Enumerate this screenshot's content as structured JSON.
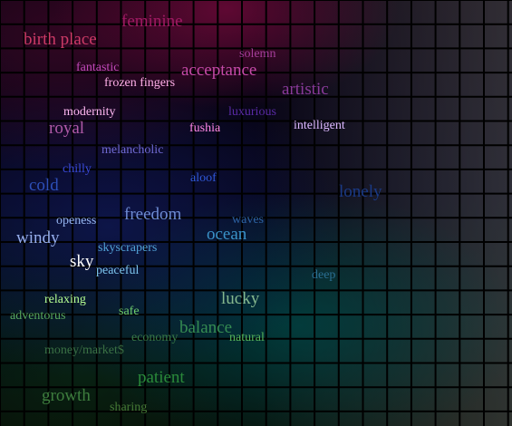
{
  "words": [
    {
      "text": "feminine",
      "color": "#a01a63"
    },
    {
      "text": "birth place",
      "color": "#cc3a66"
    },
    {
      "text": "solemn",
      "color": "#a43e9a"
    },
    {
      "text": "fantastic",
      "color": "#c048b8"
    },
    {
      "text": "acceptance",
      "color": "#c54aa8"
    },
    {
      "text": "frozen fingers",
      "color": "#ffb0e8"
    },
    {
      "text": "artistic",
      "color": "#8a3a9a"
    },
    {
      "text": "modernity",
      "color": "#ffb8f2"
    },
    {
      "text": "luxurious",
      "color": "#5a2aa6"
    },
    {
      "text": "royal",
      "color": "#b05aa8"
    },
    {
      "text": "fushia",
      "color": "#ff88e6"
    },
    {
      "text": "intelligent",
      "color": "#ddb8ff"
    },
    {
      "text": "melancholic",
      "color": "#6f6ad2"
    },
    {
      "text": "chilly",
      "color": "#3a4ad8"
    },
    {
      "text": "aloof",
      "color": "#2f58d8"
    },
    {
      "text": "cold",
      "color": "#2d4fb8"
    },
    {
      "text": "lonely",
      "color": "#1a3a86"
    },
    {
      "text": "freedom",
      "color": "#6e8cd4"
    },
    {
      "text": "openess",
      "color": "#96b6f0"
    },
    {
      "text": "waves",
      "color": "#2c62a2"
    },
    {
      "text": "windy",
      "color": "#96aeec"
    },
    {
      "text": "ocean",
      "color": "#3a92c8"
    },
    {
      "text": "skyscrapers",
      "color": "#52a2d6"
    },
    {
      "text": "sky",
      "color": "#ffffff"
    },
    {
      "text": "peaceful",
      "color": "#7cc4ec"
    },
    {
      "text": "deep",
      "color": "#2a6e92"
    },
    {
      "text": "lucky",
      "color": "#86b88e"
    },
    {
      "text": "relaxing",
      "color": "#b6ff92"
    },
    {
      "text": "safe",
      "color": "#6ecc6e"
    },
    {
      "text": "adventorus",
      "color": "#58a85e"
    },
    {
      "text": "balance",
      "color": "#358c52"
    },
    {
      "text": "economy",
      "color": "#3a7a46"
    },
    {
      "text": "natural",
      "color": "#56b45a"
    },
    {
      "text": "money/market$",
      "color": "#3a7044"
    },
    {
      "text": "patient",
      "color": "#2a8a3a"
    },
    {
      "text": "growth",
      "color": "#3e7e3e"
    },
    {
      "text": "sharing",
      "color": "#467a36"
    }
  ]
}
